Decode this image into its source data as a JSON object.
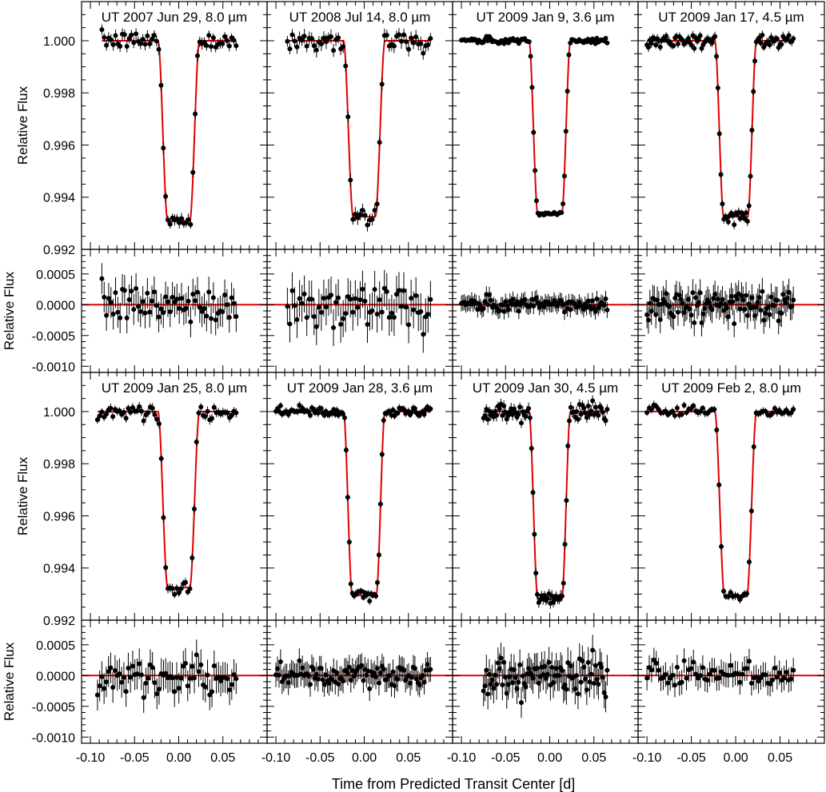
{
  "chart_data": {
    "type": "scatter",
    "title": "",
    "xlabel": "Time from Predicted Transit Center [d]",
    "xlim": [
      -0.11,
      0.1
    ],
    "x_ticks": [
      -0.1,
      -0.05,
      0.0,
      0.05
    ],
    "x_tick_labels": [
      "-0.10",
      "-0.05",
      "0.00",
      "0.05"
    ],
    "flux_ylabel": "Relative Flux",
    "flux_ylim": [
      0.992,
      1.0015
    ],
    "flux_ticks": [
      0.992,
      0.994,
      0.996,
      0.998,
      1.0
    ],
    "flux_tick_labels": [
      "0.992",
      "0.994",
      "0.996",
      "0.998",
      "1.000"
    ],
    "residual_ylabel": "Relative Flux",
    "residual_ylim": [
      -0.0011,
      0.0009
    ],
    "residual_ticks": [
      -0.001,
      -0.0005,
      0.0,
      0.0005
    ],
    "residual_tick_labels": [
      "-0.0010",
      "-0.0005",
      "0.0000",
      "0.0005"
    ],
    "model_color": "#e00000",
    "point_color": "#000000",
    "panels": [
      {
        "label": "UT 2007 Jun 29, 8.0 µm",
        "band": "8.0",
        "x_start": -0.087,
        "x_end": 0.065,
        "n_points": 60,
        "depth": 0.0069,
        "model_min": 0.99308,
        "t1": -0.0235,
        "t2": -0.0125,
        "noise": 0.00018,
        "residual_amp": 0.00025
      },
      {
        "label": "UT 2008 Jul 14, 8.0 µm",
        "band": "8.0",
        "x_start": -0.087,
        "x_end": 0.075,
        "n_points": 60,
        "depth": 0.0068,
        "model_min": 0.99325,
        "t1": -0.0235,
        "t2": -0.0125,
        "noise": 0.00022,
        "residual_amp": 0.0003
      },
      {
        "label": "UT 2009 Jan 9, 3.6 µm",
        "band": "3.6",
        "x_start": -0.1,
        "x_end": 0.065,
        "n_points": 100,
        "depth": 0.0066,
        "model_min": 0.99335,
        "t1": -0.0235,
        "t2": -0.0135,
        "noise": 8e-05,
        "residual_amp": 0.00013
      },
      {
        "label": "UT 2009 Jan 17, 4.5 µm",
        "band": "4.5",
        "x_start": -0.1,
        "x_end": 0.065,
        "n_points": 100,
        "depth": 0.0068,
        "model_min": 0.99325,
        "t1": -0.0235,
        "t2": -0.0135,
        "noise": 0.00014,
        "residual_amp": 0.00022
      },
      {
        "label": "UT 2009 Jan 25, 8.0 µm",
        "band": "8.0",
        "x_start": -0.092,
        "x_end": 0.065,
        "n_points": 64,
        "depth": 0.0068,
        "model_min": 0.99325,
        "t1": -0.0235,
        "t2": -0.0125,
        "noise": 0.00015,
        "residual_amp": 0.00025
      },
      {
        "label": "UT 2009 Jan 28, 3.6 µm",
        "band": "3.6",
        "x_start": -0.1,
        "x_end": 0.075,
        "n_points": 100,
        "depth": 0.007,
        "model_min": 0.99295,
        "t1": -0.0235,
        "t2": -0.0135,
        "noise": 0.00012,
        "residual_amp": 0.0002
      },
      {
        "label": "UT 2009 Jan 30, 4.5 µm",
        "band": "4.5",
        "x_start": -0.075,
        "x_end": 0.065,
        "n_points": 86,
        "depth": 0.0072,
        "model_min": 0.9928,
        "t1": -0.0235,
        "t2": -0.0135,
        "noise": 0.00018,
        "residual_amp": 0.00025
      },
      {
        "label": "UT 2009 Feb 2, 8.0 µm",
        "band": "8.0",
        "x_start": -0.1,
        "x_end": 0.065,
        "n_points": 64,
        "depth": 0.007,
        "model_min": 0.9929,
        "t1": -0.0235,
        "t2": -0.0125,
        "noise": 0.00013,
        "residual_amp": 0.0002
      }
    ]
  }
}
